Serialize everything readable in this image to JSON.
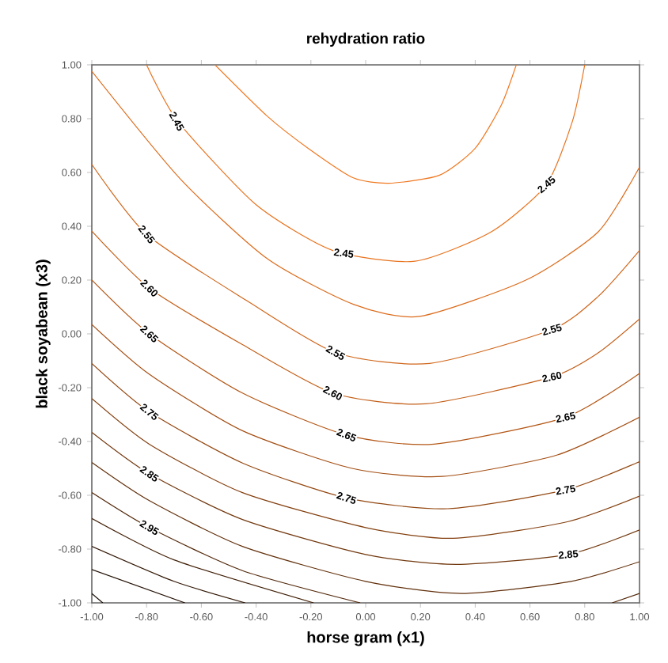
{
  "chart_data": {
    "type": "line",
    "title": "rehydration ratio",
    "xlabel": "horse gram (x1)",
    "ylabel": "black soyabean (x3)",
    "xlim": [
      -1,
      1
    ],
    "ylim": [
      -1,
      1
    ],
    "xticks": [
      {
        "value": -1,
        "label": "-1.00"
      },
      {
        "value": -0.8,
        "label": "-0.80"
      },
      {
        "value": -0.6,
        "label": "-0.60"
      },
      {
        "value": -0.4,
        "label": "-0.40"
      },
      {
        "value": -0.2,
        "label": "-0.20"
      },
      {
        "value": 0,
        "label": "0.00"
      },
      {
        "value": 0.2,
        "label": "0.20"
      },
      {
        "value": 0.4,
        "label": "0.40"
      },
      {
        "value": 0.6,
        "label": "0.60"
      },
      {
        "value": 0.8,
        "label": "0.80"
      },
      {
        "value": 1,
        "label": "1.00"
      }
    ],
    "yticks": [
      {
        "value": -1,
        "label": "-1.00"
      },
      {
        "value": -0.8,
        "label": "-0.80"
      },
      {
        "value": -0.6,
        "label": "-0.60"
      },
      {
        "value": -0.4,
        "label": "-0.40"
      },
      {
        "value": -0.2,
        "label": "-0.20"
      },
      {
        "value": 0,
        "label": "0.00"
      },
      {
        "value": 0.2,
        "label": "0.20"
      },
      {
        "value": 0.4,
        "label": "0.40"
      },
      {
        "value": 0.6,
        "label": "0.60"
      },
      {
        "value": 0.8,
        "label": "0.80"
      },
      {
        "value": 1,
        "label": "1.00"
      }
    ],
    "marker": "none",
    "line_style": "solid",
    "series": [
      {
        "color": "#f07820",
        "x": [
          -0.55,
          -0.36,
          -0.21,
          -0.045,
          0.085,
          0.27,
          0.4,
          0.495,
          0.55
        ],
        "values": [
          1,
          0.81,
          0.69,
          0.58,
          0.56,
          0.59,
          0.69,
          0.85,
          1
        ]
      },
      {
        "color": "#e8731e",
        "x": [
          -0.8,
          -0.686,
          -0.4,
          -0.12,
          0.18,
          0.46,
          0.66,
          0.755,
          0.8
        ],
        "values": [
          1,
          0.79,
          0.48,
          0.31,
          0.27,
          0.38,
          0.555,
          0.79,
          1
        ]
      },
      {
        "color": "#dc6c1c",
        "x": [
          -1,
          -0.677,
          -0.36,
          -0.045,
          0.197,
          0.585,
          0.85,
          1
        ],
        "values": [
          0.976,
          0.576,
          0.28,
          0.11,
          0.065,
          0.2,
          0.38,
          0.62
        ]
      },
      {
        "color": "#d0661a",
        "x": [
          -1,
          -0.8,
          -0.435,
          -0.11,
          0.234,
          0.68,
          0.85,
          1
        ],
        "values": [
          0.63,
          0.37,
          0.124,
          -0.07,
          -0.11,
          0.016,
          0.14,
          0.31
        ]
      },
      {
        "color": "#c45f18",
        "x": [
          -1,
          -0.79,
          -0.45,
          -0.12,
          0.22,
          0.68,
          0.85,
          1
        ],
        "values": [
          0.382,
          0.17,
          -0.04,
          -0.22,
          -0.26,
          -0.16,
          -0.07,
          0.055
        ]
      },
      {
        "color": "#b45716",
        "x": [
          -1,
          -0.79,
          -0.45,
          -0.07,
          0.25,
          0.73,
          1
        ],
        "values": [
          0.2,
          0.0,
          -0.22,
          -0.376,
          -0.41,
          -0.31,
          -0.147
        ]
      },
      {
        "color": "#a44f14",
        "x": [
          -1,
          -0.79,
          -0.45,
          -0.05,
          0.28,
          0.7,
          1
        ],
        "values": [
          0.035,
          -0.15,
          -0.36,
          -0.5,
          -0.53,
          -0.45,
          -0.31
        ]
      },
      {
        "color": "#944812",
        "x": [
          -1,
          -0.79,
          -0.45,
          -0.07,
          0.3,
          0.73,
          1
        ],
        "values": [
          -0.11,
          -0.29,
          -0.48,
          -0.61,
          -0.65,
          -0.58,
          -0.475
        ]
      },
      {
        "color": "#844010",
        "x": [
          -1,
          -0.79,
          -0.45,
          0.0,
          0.32,
          0.73,
          1
        ],
        "values": [
          -0.24,
          -0.41,
          -0.59,
          -0.72,
          -0.76,
          -0.7,
          -0.603
        ]
      },
      {
        "color": "#72380e",
        "x": [
          -1,
          -0.79,
          -0.45,
          0.0,
          0.33,
          0.74,
          1
        ],
        "values": [
          -0.366,
          -0.52,
          -0.69,
          -0.82,
          -0.857,
          -0.82,
          -0.729
        ]
      },
      {
        "color": "#62300c",
        "x": [
          -1,
          -0.79,
          -0.45,
          0.0,
          0.35,
          0.75,
          1
        ],
        "values": [
          -0.478,
          -0.62,
          -0.79,
          -0.92,
          -0.965,
          -0.92,
          -0.847
        ]
      },
      {
        "color": "#52280a",
        "x": [
          -1,
          -0.79,
          -0.45,
          -0.02,
          null,
          0.9,
          1
        ],
        "values": [
          -0.59,
          -0.72,
          -0.88,
          -1,
          null,
          -1,
          -0.965
        ]
      },
      {
        "color": "#422008",
        "x": [
          -1,
          -0.7,
          -0.19
        ],
        "values": [
          -0.686,
          -0.84,
          -1
        ]
      },
      {
        "color": "#321806",
        "x": [
          -1,
          -0.7,
          -0.44
        ],
        "values": [
          -0.79,
          -0.92,
          -1
        ]
      },
      {
        "color": "#221004",
        "x": [
          -1,
          -0.66
        ],
        "values": [
          -0.876,
          -1
        ]
      },
      {
        "color": "#140802",
        "x": [
          -1,
          -0.96
        ],
        "values": [
          -0.965,
          -1
        ]
      }
    ],
    "annotations": [
      {
        "text": "2.45",
        "x": -0.69,
        "y": 0.79
      },
      {
        "text": "2.45",
        "x": -0.08,
        "y": 0.3
      },
      {
        "text": "2.45",
        "x": 0.66,
        "y": 0.555
      },
      {
        "text": "2.55",
        "x": -0.8,
        "y": 0.37
      },
      {
        "text": "2.55",
        "x": -0.11,
        "y": -0.07
      },
      {
        "text": "2.55",
        "x": 0.68,
        "y": 0.016
      },
      {
        "text": "2.60",
        "x": -0.79,
        "y": 0.17
      },
      {
        "text": "2.60",
        "x": -0.12,
        "y": -0.22
      },
      {
        "text": "2.60",
        "x": 0.68,
        "y": -0.16
      },
      {
        "text": "2.65",
        "x": -0.79,
        "y": 0.0
      },
      {
        "text": "2.65",
        "x": -0.07,
        "y": -0.376
      },
      {
        "text": "2.65",
        "x": 0.73,
        "y": -0.31
      },
      {
        "text": "2.75",
        "x": -0.79,
        "y": -0.29
      },
      {
        "text": "2.75",
        "x": -0.07,
        "y": -0.61
      },
      {
        "text": "2.75",
        "x": 0.73,
        "y": -0.58
      },
      {
        "text": "2.85",
        "x": -0.79,
        "y": -0.52
      },
      {
        "text": "2.85",
        "x": 0.74,
        "y": -0.82
      },
      {
        "text": "2.95",
        "x": -0.79,
        "y": -0.72
      }
    ]
  }
}
